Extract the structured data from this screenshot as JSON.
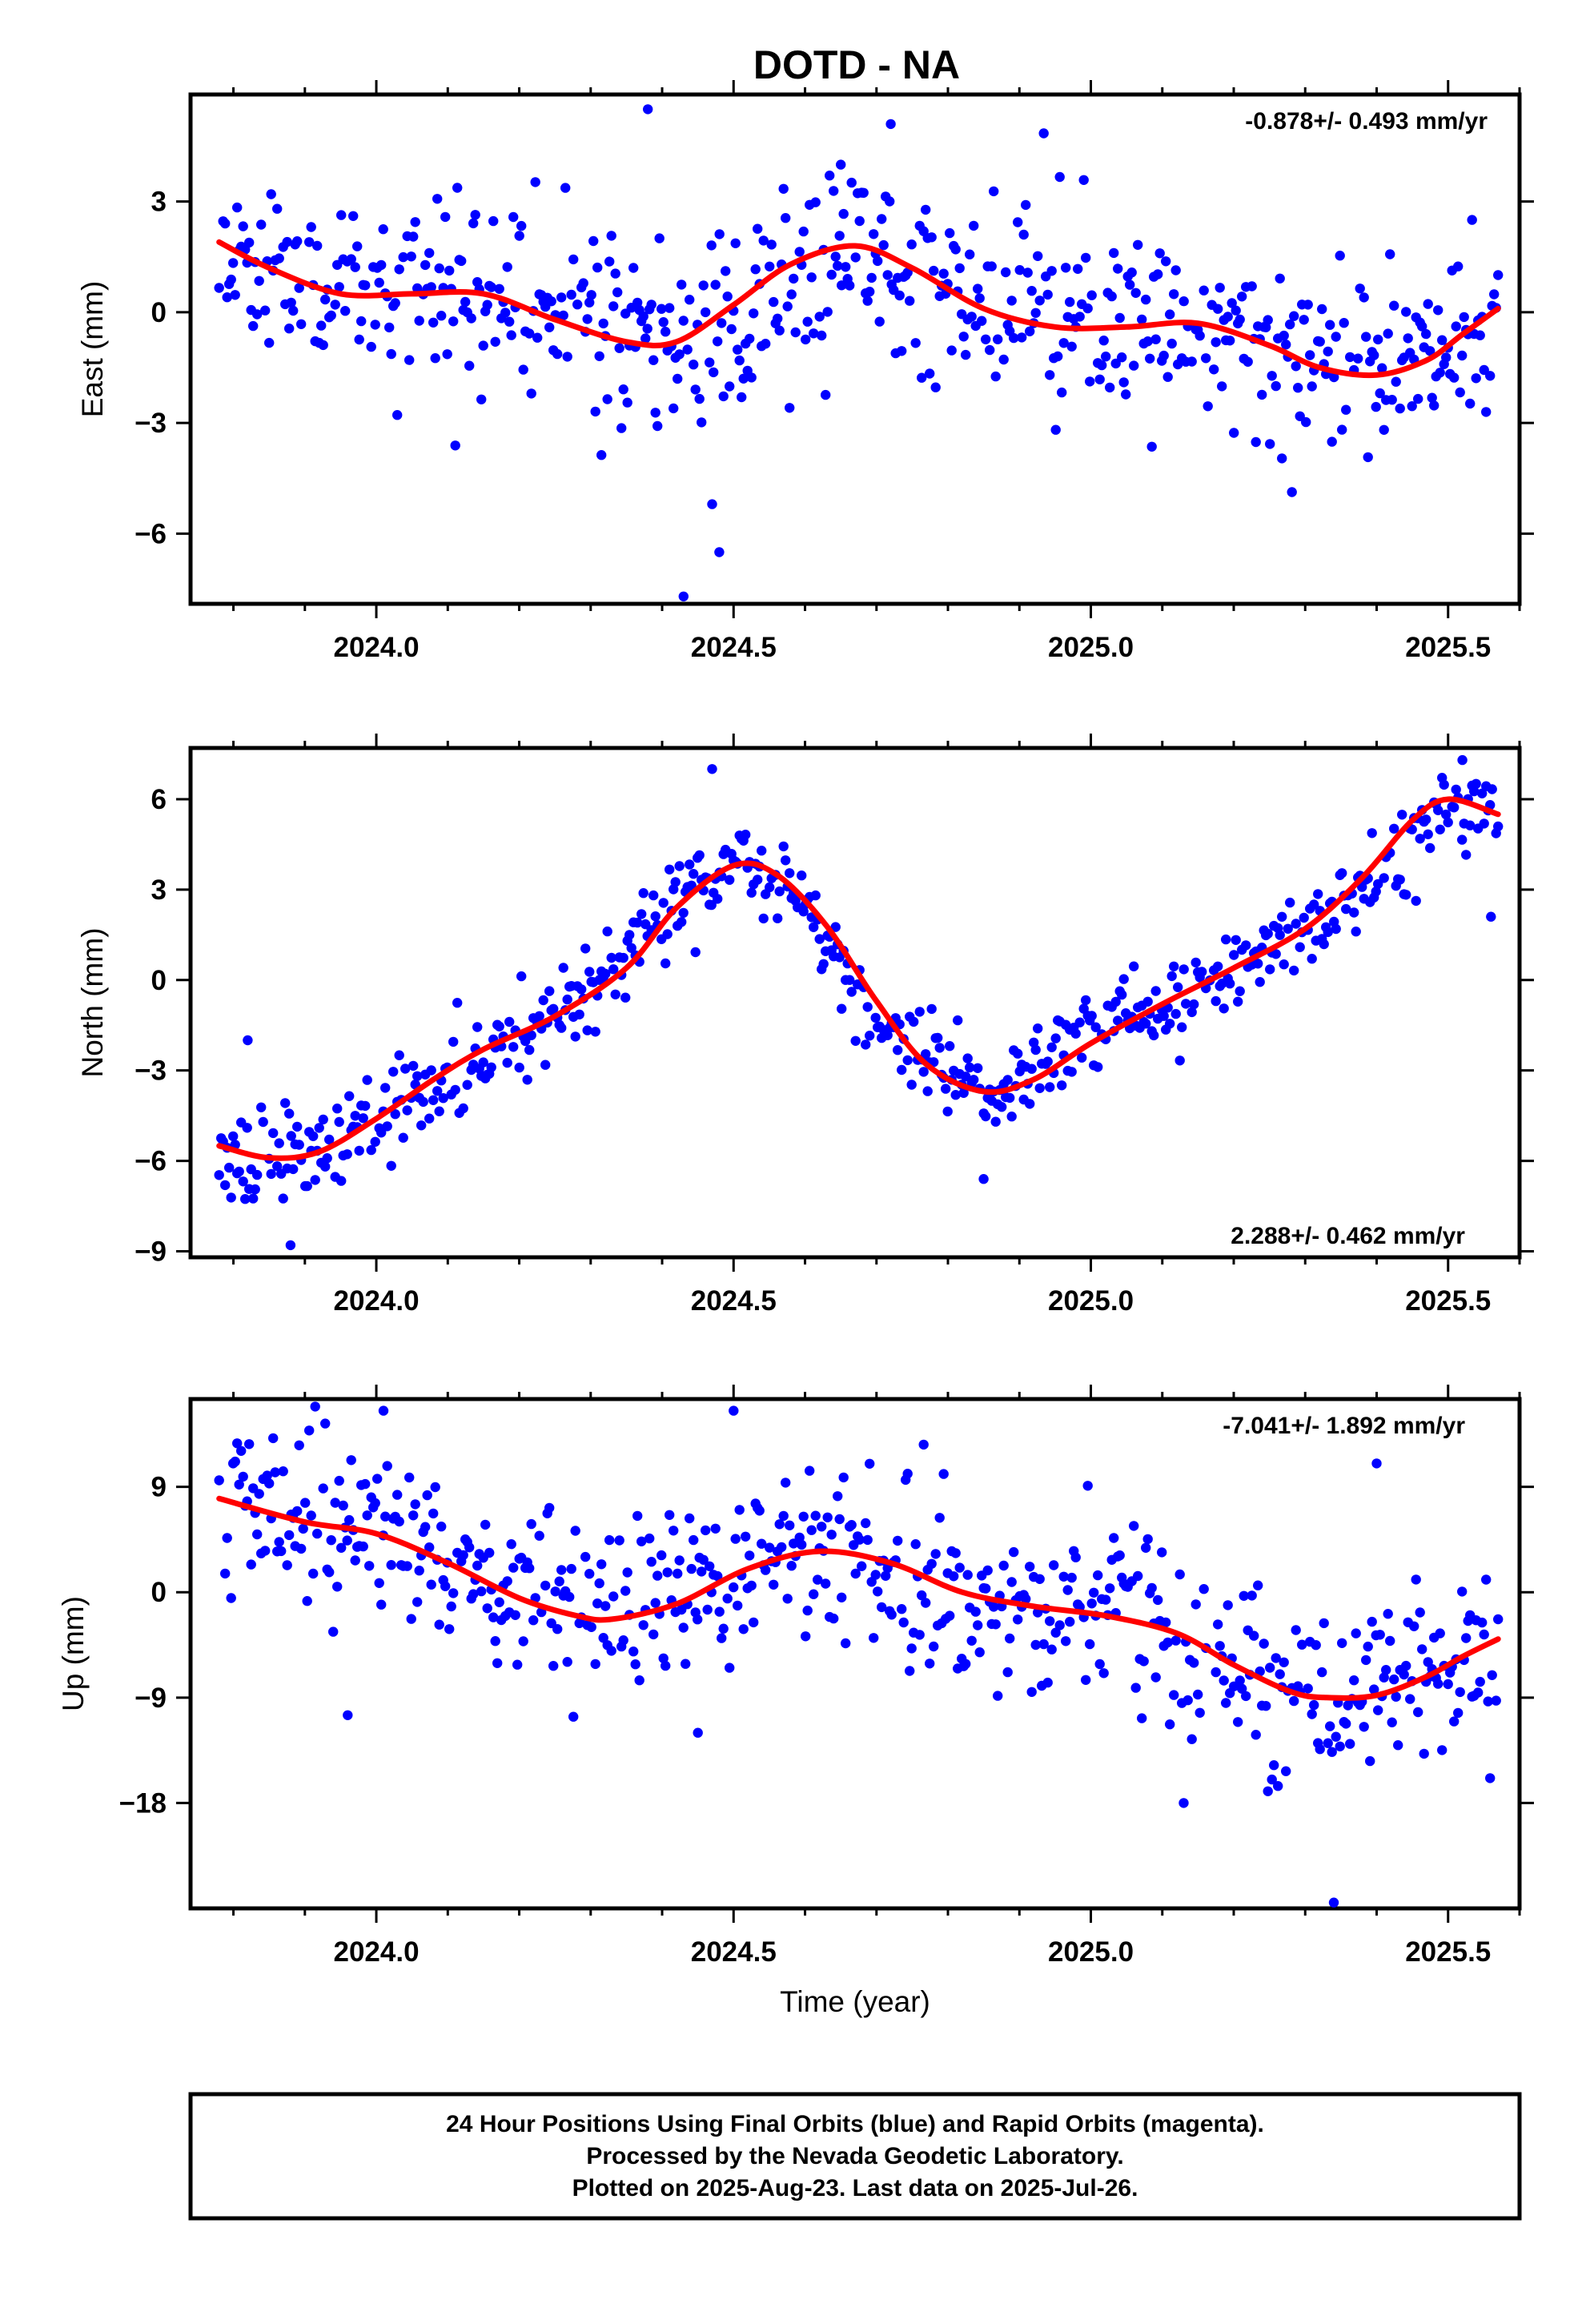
{
  "title": "DOTD - NA",
  "colors": {
    "points": "#0000ff",
    "fit": "#ff0000",
    "frame": "#000000"
  },
  "chart_data": [
    {
      "type": "scatter",
      "ylabel": "East (mm)",
      "xlabel": "",
      "rate": "-0.878+/- 0.493 mm/yr",
      "rate_position": "top-right",
      "xlim": [
        2023.74,
        2025.6
      ],
      "ylim": [
        -7.9,
        5.9
      ],
      "xticks": [
        2024.0,
        2024.5,
        2025.0,
        2025.5
      ],
      "xtick_labels": [
        "2024.0",
        "2024.5",
        "2025.0",
        "2025.5"
      ],
      "yticks": [
        -6,
        -3,
        0,
        3
      ],
      "ytick_labels": [
        "−6",
        "−3",
        "0",
        "3"
      ],
      "series": [
        {
          "kind": "points",
          "scatter": 1.3,
          "seed": 11,
          "mean_x": [
            2023.78,
            2023.85,
            2024.0,
            2024.2,
            2024.4,
            2024.5,
            2024.67,
            2024.8,
            2025.0,
            2025.15,
            2025.3,
            2025.45,
            2025.5,
            2025.57
          ],
          "mean_y": [
            1.9,
            0.9,
            0.4,
            0.6,
            -0.8,
            -0.4,
            1.8,
            0.8,
            -0.4,
            -0.3,
            -1.2,
            -1.3,
            -1.0,
            0.5
          ],
          "outliers": [
            [
              2024.38,
              5.5
            ],
            [
              2024.43,
              -7.7
            ],
            [
              2024.47,
              -5.2
            ],
            [
              2024.48,
              -6.5
            ],
            [
              2024.65,
              4.0
            ],
            [
              2024.72,
              5.1
            ]
          ]
        },
        {
          "kind": "fit",
          "x": [
            2023.78,
            2023.85,
            2023.95,
            2024.05,
            2024.15,
            2024.25,
            2024.35,
            2024.42,
            2024.5,
            2024.58,
            2024.67,
            2024.75,
            2024.85,
            2024.95,
            2025.05,
            2025.15,
            2025.25,
            2025.32,
            2025.4,
            2025.47,
            2025.52,
            2025.57
          ],
          "y": [
            1.9,
            1.2,
            0.5,
            0.5,
            0.5,
            -0.2,
            -0.8,
            -0.8,
            0.2,
            1.3,
            1.8,
            1.2,
            0.1,
            -0.4,
            -0.4,
            -0.3,
            -0.9,
            -1.5,
            -1.7,
            -1.3,
            -0.6,
            0.1
          ]
        }
      ]
    },
    {
      "type": "scatter",
      "ylabel": "North (mm)",
      "xlabel": "",
      "rate": "2.288+/- 0.462 mm/yr",
      "rate_position": "bottom-right",
      "xlim": [
        2023.74,
        2025.6
      ],
      "ylim": [
        -9.2,
        7.7
      ],
      "xticks": [
        2024.0,
        2024.5,
        2025.0,
        2025.5
      ],
      "xtick_labels": [
        "2024.0",
        "2024.5",
        "2025.0",
        "2025.5"
      ],
      "yticks": [
        -9,
        -6,
        -3,
        0,
        3,
        6
      ],
      "ytick_labels": [
        "−9",
        "−6",
        "−3",
        "0",
        "3",
        "6"
      ],
      "series": [
        {
          "kind": "points",
          "scatter": 0.75,
          "seed": 23,
          "mean_x": [
            2023.78,
            2023.9,
            2024.0,
            2024.15,
            2024.3,
            2024.4,
            2024.5,
            2024.6,
            2024.7,
            2024.85,
            2025.0,
            2025.15,
            2025.3,
            2025.45,
            2025.5,
            2025.57
          ],
          "mean_y": [
            -5.5,
            -5.9,
            -4.8,
            -2.5,
            -0.5,
            2.5,
            3.8,
            2.5,
            -1.5,
            -3.7,
            -2.0,
            -0.3,
            1.5,
            4.5,
            6.0,
            5.5
          ],
          "outliers": [
            [
              2024.47,
              7.0
            ],
            [
              2023.88,
              -8.8
            ],
            [
              2024.85,
              -6.6
            ],
            [
              2025.56,
              2.1
            ],
            [
              2025.52,
              7.3
            ],
            [
              2023.82,
              -2.0
            ]
          ]
        },
        {
          "kind": "fit",
          "x": [
            2023.78,
            2023.85,
            2023.92,
            2024.0,
            2024.08,
            2024.15,
            2024.25,
            2024.35,
            2024.42,
            2024.5,
            2024.56,
            2024.63,
            2024.7,
            2024.77,
            2024.85,
            2024.92,
            2025.0,
            2025.1,
            2025.2,
            2025.3,
            2025.38,
            2025.45,
            2025.5,
            2025.57
          ],
          "y": [
            -5.5,
            -5.9,
            -5.7,
            -4.6,
            -3.3,
            -2.3,
            -1.2,
            0.4,
            2.4,
            3.8,
            3.5,
            1.8,
            -0.7,
            -2.8,
            -3.7,
            -3.3,
            -2.1,
            -0.8,
            0.4,
            1.7,
            3.4,
            5.3,
            6.0,
            5.5
          ]
        }
      ]
    },
    {
      "type": "scatter",
      "ylabel": "Up (mm)",
      "xlabel": "Time (year)",
      "rate": "-7.041+/- 1.892 mm/yr",
      "rate_position": "top-right",
      "xlim": [
        2023.74,
        2025.6
      ],
      "ylim": [
        -27,
        16.5
      ],
      "xticks": [
        2024.0,
        2024.5,
        2025.0,
        2025.5
      ],
      "xtick_labels": [
        "2024.0",
        "2024.5",
        "2025.0",
        "2025.5"
      ],
      "yticks": [
        -18,
        -9,
        0,
        9
      ],
      "ytick_labels": [
        "−18",
        "−9",
        "0",
        "9"
      ],
      "series": [
        {
          "kind": "points",
          "scatter": 3.8,
          "seed": 37,
          "mean_x": [
            2023.78,
            2023.9,
            2024.0,
            2024.1,
            2024.2,
            2024.32,
            2024.45,
            2024.62,
            2024.8,
            2025.0,
            2025.15,
            2025.25,
            2025.32,
            2025.4,
            2025.5,
            2025.57
          ],
          "mean_y": [
            7.5,
            6.0,
            5.0,
            3.0,
            0.0,
            -2.5,
            0.5,
            3.5,
            0.5,
            -1.5,
            -4.5,
            -8.5,
            -9.0,
            -8.5,
            -6.0,
            -4.5
          ],
          "outliers": [
            [
              2023.96,
              -10.5
            ],
            [
              2024.01,
              15.5
            ],
            [
              2024.5,
              15.5
            ],
            [
              2025.4,
              11.0
            ],
            [
              2025.34,
              -26.5
            ],
            [
              2025.13,
              -18.0
            ],
            [
              2024.45,
              -12.0
            ]
          ]
        },
        {
          "kind": "fit",
          "x": [
            2023.78,
            2023.9,
            2024.0,
            2024.1,
            2024.2,
            2024.28,
            2024.33,
            2024.42,
            2024.52,
            2024.62,
            2024.72,
            2024.82,
            2024.92,
            2025.02,
            2025.12,
            2025.2,
            2025.28,
            2025.33,
            2025.4,
            2025.47,
            2025.52,
            2025.57
          ],
          "y": [
            8.0,
            6.0,
            5.0,
            2.5,
            -0.5,
            -2.0,
            -2.3,
            -1.0,
            2.0,
            3.5,
            2.5,
            0.0,
            -1.2,
            -2.0,
            -3.5,
            -6.2,
            -8.5,
            -9.0,
            -8.8,
            -7.2,
            -5.5,
            -4.0
          ]
        }
      ]
    }
  ],
  "footer": {
    "line1": "24 Hour Positions Using Final Orbits (blue) and Rapid Orbits (magenta).",
    "line2": "Processed by the Nevada Geodetic Laboratory.",
    "line3": "Plotted on 2025-Aug-23. Last data on 2025-Jul-26."
  }
}
